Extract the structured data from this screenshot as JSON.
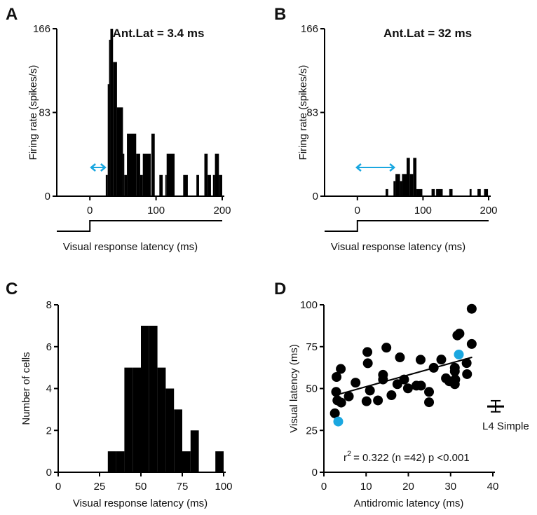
{
  "panels": {
    "A": "A",
    "B": "B",
    "C": "C",
    "D": "D"
  },
  "chart_data": [
    {
      "id": "A",
      "type": "bar",
      "title": "Ant.Lat = 3.4 ms",
      "xlabel": "Visual response latency (ms)",
      "ylabel": "Firing rate (spikes/s)",
      "xlim": [
        -50,
        200
      ],
      "ylim": [
        0,
        166
      ],
      "xticks": [
        0,
        100,
        200
      ],
      "yticks": [
        0,
        83,
        166
      ],
      "bins": [
        [
          24,
          27,
          21
        ],
        [
          27,
          29,
          111
        ],
        [
          29,
          31,
          155
        ],
        [
          31,
          35,
          166
        ],
        [
          35,
          41,
          133
        ],
        [
          41,
          50,
          88
        ],
        [
          50,
          52,
          42
        ],
        [
          52,
          56,
          21
        ],
        [
          56,
          70,
          62
        ],
        [
          70,
          76,
          42
        ],
        [
          76,
          80,
          21
        ],
        [
          80,
          92,
          42
        ],
        [
          93,
          98,
          62
        ],
        [
          105,
          110,
          21
        ],
        [
          114,
          116,
          21
        ],
        [
          116,
          128,
          42
        ],
        [
          141,
          148,
          21
        ],
        [
          161,
          165,
          21
        ],
        [
          173,
          178,
          42
        ],
        [
          178,
          183,
          21
        ],
        [
          186,
          189,
          21
        ],
        [
          189,
          195,
          42
        ],
        [
          195,
          200,
          21
        ]
      ],
      "antidromic_arrow_ms": [
        1,
        24
      ],
      "arrow_color": "#1aa7e0"
    },
    {
      "id": "B",
      "type": "bar",
      "title": "Ant.Lat = 32 ms",
      "xlabel": "Visual response latency (ms)",
      "ylabel": "Firing rate (spikes/s)",
      "xlim": [
        -50,
        200
      ],
      "ylim": [
        0,
        166
      ],
      "xticks": [
        0,
        100,
        200
      ],
      "yticks": [
        0,
        83,
        166
      ],
      "bins": [
        [
          43,
          47,
          7
        ],
        [
          55,
          58,
          15
        ],
        [
          58,
          65,
          22
        ],
        [
          65,
          68,
          15
        ],
        [
          68,
          75,
          22
        ],
        [
          75,
          80,
          38
        ],
        [
          80,
          85,
          22
        ],
        [
          85,
          90,
          38
        ],
        [
          90,
          99,
          7
        ],
        [
          113,
          118,
          7
        ],
        [
          120,
          130,
          7
        ],
        [
          140,
          145,
          7
        ],
        [
          171,
          174,
          7
        ],
        [
          183,
          188,
          7
        ],
        [
          193,
          199,
          7
        ]
      ],
      "antidromic_arrow_ms": [
        -2,
        57
      ],
      "arrow_color": "#1aa7e0"
    },
    {
      "id": "C",
      "type": "bar",
      "xlabel": "Visual response latency (ms)",
      "ylabel": "Number of cells",
      "xlim": [
        0,
        100
      ],
      "ylim": [
        0,
        8
      ],
      "xticks": [
        0,
        25,
        50,
        75,
        100
      ],
      "yticks": [
        0,
        2,
        4,
        6,
        8
      ],
      "bin_width": 5,
      "bin_starts": [
        30,
        35,
        40,
        45,
        50,
        55,
        60,
        65,
        70,
        75,
        80,
        85,
        90,
        95
      ],
      "values": [
        1,
        1,
        5,
        5,
        7,
        7,
        5,
        4,
        3,
        1,
        2,
        0,
        0,
        1
      ]
    },
    {
      "id": "D",
      "type": "scatter",
      "xlabel": "Antidromic latency (ms)",
      "ylabel": "Visual latency (ms)",
      "xlim": [
        0,
        40
      ],
      "ylim": [
        0,
        100
      ],
      "xticks": [
        0,
        10,
        20,
        30,
        40
      ],
      "yticks": [
        0,
        25,
        50,
        75,
        100
      ],
      "annotation": "= 0.322 (n =42) p <0.001",
      "annotation_prefix": "r",
      "annotation_sup": "2",
      "points": [
        [
          35.0,
          97.6
        ],
        [
          31.6,
          81.7
        ],
        [
          32.1,
          82.8
        ],
        [
          35.0,
          76.6
        ],
        [
          33.8,
          65.2
        ],
        [
          33.9,
          58.6
        ],
        [
          31.0,
          62.4
        ],
        [
          31.0,
          60.3
        ],
        [
          31.1,
          55.4
        ],
        [
          31.0,
          52.6
        ],
        [
          28.9,
          56.1
        ],
        [
          29.7,
          54.3
        ],
        [
          27.8,
          67.3
        ],
        [
          26.0,
          62.4
        ],
        [
          24.9,
          48.0
        ],
        [
          24.9,
          41.8
        ],
        [
          22.9,
          67.2
        ],
        [
          21.9,
          51.7
        ],
        [
          23.0,
          51.7
        ],
        [
          19.9,
          50.1
        ],
        [
          19.0,
          55.4
        ],
        [
          17.4,
          52.6
        ],
        [
          18.0,
          68.6
        ],
        [
          16.0,
          46.0
        ],
        [
          14.8,
          74.4
        ],
        [
          14.0,
          58.2
        ],
        [
          14.0,
          55.4
        ],
        [
          12.8,
          42.9
        ],
        [
          10.9,
          48.8
        ],
        [
          10.3,
          71.8
        ],
        [
          10.4,
          65.1
        ],
        [
          10.1,
          42.4
        ],
        [
          7.5,
          53.5
        ],
        [
          5.9,
          45.3
        ],
        [
          4.0,
          61.7
        ],
        [
          4.1,
          41.6
        ],
        [
          3.0,
          56.9
        ],
        [
          2.9,
          48.0
        ],
        [
          3.2,
          42.9
        ],
        [
          2.6,
          35.2
        ]
      ],
      "highlighted_points": [
        [
          31.95,
          70.3
        ],
        [
          3.4,
          30.3
        ]
      ],
      "highlight_color": "#1aa7e0",
      "fit": {
        "slope": 0.7,
        "intercept": 44.1,
        "x_range": [
          3.6,
          35.1
        ]
      },
      "reference": {
        "label": "L4 Simple",
        "mean": 39.3,
        "low": 36.1,
        "high": 42.7
      }
    }
  ]
}
